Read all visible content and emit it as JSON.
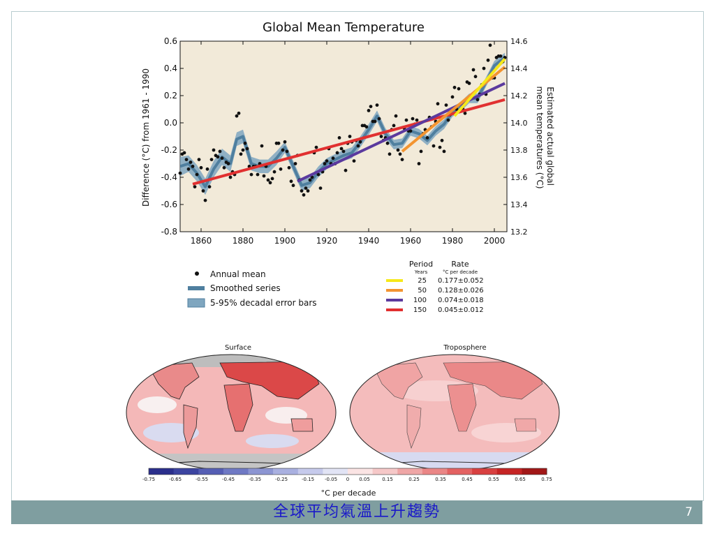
{
  "slide": {
    "title": "全球平均氣溫上升趨勢",
    "page_number": "7"
  },
  "colors": {
    "plot_bg": "#f2ead9",
    "dot": "#111111",
    "smoothed": "#4f7f9f",
    "error_band": "#7fa6bf",
    "footer": "#7f9ea0",
    "footer_title": "#1a18c9"
  },
  "chart_data": [
    {
      "type": "scatter",
      "title": "Global Mean Temperature",
      "ylabel": "Difference (°C) from 1961 - 1990",
      "ylabel_right": "Estimated actual global mean temperatures (°C)",
      "xlim": [
        1850,
        2006
      ],
      "ylim": [
        -0.8,
        0.6
      ],
      "ylim_right": [
        13.2,
        14.6
      ],
      "x_ticks": [
        "1860",
        "1880",
        "1900",
        "1920",
        "1940",
        "1960",
        "1980",
        "2000"
      ],
      "y_ticks": [
        "0.6",
        "0.4",
        "0.2",
        "0.0",
        "-0.2",
        "-0.4",
        "-0.6",
        "-0.8"
      ],
      "y_ticks_right": [
        "14.6",
        "14.4",
        "14.2",
        "14.0",
        "13.8",
        "13.6",
        "13.4",
        "13.2"
      ],
      "annual_mean": {
        "x": [
          1850,
          1851,
          1852,
          1853,
          1854,
          1855,
          1856,
          1857,
          1858,
          1859,
          1860,
          1861,
          1862,
          1863,
          1864,
          1865,
          1866,
          1867,
          1868,
          1869,
          1870,
          1871,
          1872,
          1873,
          1874,
          1875,
          1876,
          1877,
          1878,
          1879,
          1880,
          1881,
          1882,
          1883,
          1884,
          1885,
          1886,
          1887,
          1888,
          1889,
          1890,
          1891,
          1892,
          1893,
          1894,
          1895,
          1896,
          1897,
          1898,
          1899,
          1900,
          1901,
          1902,
          1903,
          1904,
          1905,
          1906,
          1907,
          1908,
          1909,
          1910,
          1911,
          1912,
          1913,
          1914,
          1915,
          1916,
          1917,
          1918,
          1919,
          1920,
          1921,
          1922,
          1923,
          1924,
          1925,
          1926,
          1927,
          1928,
          1929,
          1930,
          1931,
          1932,
          1933,
          1934,
          1935,
          1936,
          1937,
          1938,
          1939,
          1940,
          1941,
          1942,
          1943,
          1944,
          1945,
          1946,
          1947,
          1948,
          1949,
          1950,
          1951,
          1952,
          1953,
          1954,
          1955,
          1956,
          1957,
          1958,
          1959,
          1960,
          1961,
          1962,
          1963,
          1964,
          1965,
          1966,
          1967,
          1968,
          1969,
          1970,
          1971,
          1972,
          1973,
          1974,
          1975,
          1976,
          1977,
          1978,
          1979,
          1980,
          1981,
          1982,
          1983,
          1984,
          1985,
          1986,
          1987,
          1988,
          1989,
          1990,
          1991,
          1992,
          1993,
          1994,
          1995,
          1996,
          1997,
          1998,
          1999,
          2000,
          2001,
          2002,
          2003,
          2004,
          2005
        ],
        "y": [
          -0.37,
          -0.23,
          -0.22,
          -0.27,
          -0.34,
          -0.29,
          -0.32,
          -0.47,
          -0.38,
          -0.27,
          -0.33,
          -0.5,
          -0.57,
          -0.34,
          -0.47,
          -0.27,
          -0.2,
          -0.24,
          -0.25,
          -0.21,
          -0.26,
          -0.33,
          -0.29,
          -0.3,
          -0.4,
          -0.36,
          -0.38,
          0.05,
          0.07,
          -0.23,
          -0.2,
          -0.15,
          -0.19,
          -0.32,
          -0.38,
          -0.32,
          -0.32,
          -0.38,
          -0.3,
          -0.17,
          -0.39,
          -0.32,
          -0.42,
          -0.44,
          -0.41,
          -0.36,
          -0.15,
          -0.15,
          -0.34,
          -0.2,
          -0.14,
          -0.21,
          -0.33,
          -0.43,
          -0.46,
          -0.3,
          -0.24,
          -0.42,
          -0.5,
          -0.53,
          -0.48,
          -0.5,
          -0.42,
          -0.4,
          -0.22,
          -0.18,
          -0.38,
          -0.48,
          -0.36,
          -0.3,
          -0.28,
          -0.19,
          -0.3,
          -0.26,
          -0.3,
          -0.22,
          -0.11,
          -0.19,
          -0.21,
          -0.35,
          -0.15,
          -0.1,
          -0.14,
          -0.28,
          -0.13,
          -0.17,
          -0.14,
          -0.02,
          -0.02,
          -0.03,
          0.09,
          0.12,
          0.01,
          0.01,
          0.13,
          0.03,
          -0.1,
          -0.13,
          -0.11,
          -0.15,
          -0.23,
          -0.05,
          -0.02,
          0.05,
          -0.2,
          -0.23,
          -0.27,
          -0.04,
          0.02,
          -0.06,
          -0.06,
          0.03,
          -0.01,
          0.02,
          -0.3,
          -0.21,
          -0.08,
          -0.05,
          -0.11,
          0.04,
          -0.03,
          -0.17,
          0.01,
          0.14,
          -0.18,
          -0.13,
          -0.21,
          0.13,
          0.02,
          0.06,
          0.19,
          0.26,
          0.1,
          0.25,
          0.1,
          0.1,
          0.07,
          0.3,
          0.29,
          0.2,
          0.39,
          0.34,
          0.17,
          0.21,
          0.28,
          0.4,
          0.21,
          0.46,
          0.57,
          0.33,
          0.33,
          0.48,
          0.49,
          0.49,
          0.45,
          0.48
        ]
      },
      "smoothed_series": {
        "x": [
          1850,
          1854,
          1858,
          1862,
          1866,
          1870,
          1874,
          1877,
          1880,
          1884,
          1888,
          1892,
          1896,
          1900,
          1904,
          1908,
          1912,
          1916,
          1920,
          1924,
          1928,
          1932,
          1936,
          1940,
          1944,
          1948,
          1952,
          1956,
          1960,
          1964,
          1968,
          1972,
          1976,
          1980,
          1984,
          1988,
          1992,
          1996,
          2000,
          2005
        ],
        "y": [
          -0.32,
          -0.3,
          -0.37,
          -0.47,
          -0.34,
          -0.25,
          -0.3,
          -0.12,
          -0.1,
          -0.3,
          -0.32,
          -0.32,
          -0.26,
          -0.18,
          -0.32,
          -0.46,
          -0.44,
          -0.36,
          -0.3,
          -0.27,
          -0.24,
          -0.22,
          -0.14,
          -0.05,
          0.05,
          -0.08,
          -0.16,
          -0.15,
          -0.06,
          -0.08,
          -0.13,
          -0.06,
          -0.01,
          0.08,
          0.12,
          0.18,
          0.18,
          0.3,
          0.42,
          0.48
        ],
        "error_halfwidth": [
          0.07,
          0.06,
          0.06,
          0.06,
          0.06,
          0.06,
          0.06,
          0.05,
          0.05,
          0.05,
          0.05,
          0.05,
          0.05,
          0.04,
          0.04,
          0.04,
          0.04,
          0.04,
          0.04,
          0.04,
          0.04,
          0.04,
          0.04,
          0.04,
          0.04,
          0.04,
          0.035,
          0.035,
          0.035,
          0.035,
          0.035,
          0.035,
          0.035,
          0.035,
          0.035,
          0.035,
          0.035,
          0.035,
          0.035,
          0.035
        ]
      },
      "trends": [
        {
          "period": "25",
          "rate": "0.177±0.052",
          "color": "#f6e81a",
          "x": [
            1981,
            2005
          ],
          "y": [
            0.05,
            0.47
          ]
        },
        {
          "period": "50",
          "rate": "0.128±0.026",
          "color": "#f39430",
          "x": [
            1956,
            2005
          ],
          "y": [
            -0.21,
            0.41
          ]
        },
        {
          "period": "100",
          "rate": "0.074±0.018",
          "color": "#5b3a9e",
          "x": [
            1906,
            2005
          ],
          "y": [
            -0.43,
            0.29
          ]
        },
        {
          "period": "150",
          "rate": "0.045±0.012",
          "color": "#e13030",
          "x": [
            1856,
            2005
          ],
          "y": [
            -0.45,
            0.17
          ]
        }
      ],
      "legend": {
        "annual_mean": "Annual mean",
        "smoothed": "Smoothed series",
        "error_bars": "5-95% decadal error bars",
        "period_header": "Period",
        "period_sub": "Years",
        "rate_header": "Rate",
        "rate_sub": "°C  per decade"
      }
    },
    {
      "type": "heatmap",
      "maps": [
        "Surface",
        "Troposphere"
      ],
      "colorbar_label": "°C per decade",
      "colorbar_ticks": [
        "-0.75",
        "-0.65",
        "-0.55",
        "-0.45",
        "-0.35",
        "-0.25",
        "-0.15",
        "-0.05",
        "0",
        "0.05",
        "0.15",
        "0.25",
        "0.35",
        "0.45",
        "0.55",
        "0.65",
        "0.75"
      ],
      "colorbar_colors": [
        "#2b2f8c",
        "#3c44a0",
        "#555eb4",
        "#6f79c4",
        "#8c95d2",
        "#a9b0e0",
        "#c6caec",
        "#e2e4f5",
        "#fbe4e4",
        "#f6c8c8",
        "#efa6a6",
        "#ea8686",
        "#e36262",
        "#d84040",
        "#c52424",
        "#a11717"
      ]
    }
  ]
}
